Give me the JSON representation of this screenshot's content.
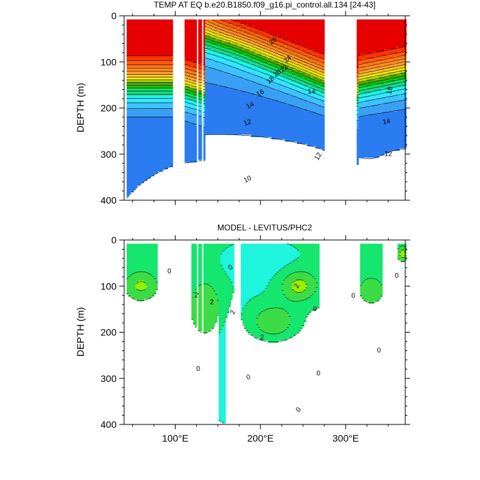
{
  "chart_data": [
    {
      "type": "heatmap",
      "title": "TEMP AT EQ b.e20.B1850.f09_g16.pi_control.all.134 [24-43]",
      "ylabel": "DEPTH (m)",
      "xlabel": "",
      "xlim": [
        40,
        370
      ],
      "ylim": [
        400,
        0
      ],
      "x_ticks": [],
      "y_ticks": [
        {
          "value": 0,
          "label": "0"
        },
        {
          "value": 100,
          "label": "100"
        },
        {
          "value": 200,
          "label": "200"
        },
        {
          "value": 300,
          "label": "300"
        },
        {
          "value": 400,
          "label": "400"
        }
      ],
      "y_minor_ticks": [
        20,
        40,
        60,
        80,
        120,
        140,
        160,
        180,
        220,
        240,
        260,
        280,
        320,
        340,
        360,
        380
      ],
      "x_minor_ticks": [
        50,
        75,
        100,
        125,
        150,
        175,
        200,
        225,
        250,
        275,
        300,
        325,
        350
      ],
      "contour_interval": 1,
      "color_levels": [
        {
          "max": 10,
          "color": "#1e5aff"
        },
        {
          "max": 11,
          "color": "#2a7cf0"
        },
        {
          "max": 12,
          "color": "#3aa0f5"
        },
        {
          "max": 13,
          "color": "#3cc2ff"
        },
        {
          "max": 14,
          "color": "#33e6ff"
        },
        {
          "max": 15,
          "color": "#1af5e6"
        },
        {
          "max": 16,
          "color": "#16d98a"
        },
        {
          "max": 17,
          "color": "#10e060"
        },
        {
          "max": 18,
          "color": "#00c800"
        },
        {
          "max": 19,
          "color": "#5aa800"
        },
        {
          "max": 20,
          "color": "#b4e000"
        },
        {
          "max": 21,
          "color": "#ffeb00"
        },
        {
          "max": 22,
          "color": "#ffc820"
        },
        {
          "max": 23,
          "color": "#ffa030"
        },
        {
          "max": 24,
          "color": "#ff8c1e"
        },
        {
          "max": 25,
          "color": "#ff7814"
        },
        {
          "max": 26,
          "color": "#ff5a0a"
        },
        {
          "max": 27,
          "color": "#ff3200"
        },
        {
          "max": 99,
          "color": "#e60000"
        }
      ],
      "land_gaps": [
        [
          97,
          112
        ],
        [
          125,
          127
        ],
        [
          132,
          133
        ],
        [
          276,
          314
        ]
      ],
      "labels": [
        {
          "text": "26",
          "x": 215,
          "z": 55,
          "angle": -35
        },
        {
          "text": "24",
          "x": 232,
          "z": 95,
          "angle": -40
        },
        {
          "text": "22",
          "x": 228,
          "z": 115,
          "angle": -40
        },
        {
          "text": "20",
          "x": 220,
          "z": 125,
          "angle": -40
        },
        {
          "text": "18",
          "x": 212,
          "z": 140,
          "angle": -40
        },
        {
          "text": "16",
          "x": 200,
          "z": 168,
          "angle": -30
        },
        {
          "text": "14",
          "x": 188,
          "z": 195,
          "angle": -25
        },
        {
          "text": "12",
          "x": 185,
          "z": 232,
          "angle": -20
        },
        {
          "text": "14",
          "x": 260,
          "z": 165,
          "angle": 0
        },
        {
          "text": "12",
          "x": 268,
          "z": 305,
          "angle": -60
        },
        {
          "text": "10",
          "x": 185,
          "z": 355,
          "angle": -25
        },
        {
          "text": "16",
          "x": 352,
          "z": 162,
          "angle": -75
        },
        {
          "text": "14",
          "x": 348,
          "z": 230,
          "angle": -10
        },
        {
          "text": "12",
          "x": 350,
          "z": 300,
          "angle": 0
        }
      ]
    },
    {
      "type": "heatmap",
      "title": "MODEL - LEVITUS/PHC2",
      "ylabel": "DEPTH (m)",
      "xlabel": "",
      "xlim": [
        40,
        370
      ],
      "ylim": [
        400,
        0
      ],
      "x_ticks": [
        {
          "value": 100,
          "label": "100°E"
        },
        {
          "value": 200,
          "label": "200°E"
        },
        {
          "value": 300,
          "label": "300°E"
        }
      ],
      "y_ticks": [
        {
          "value": 0,
          "label": "0"
        },
        {
          "value": 100,
          "label": "100"
        },
        {
          "value": 200,
          "label": "200"
        },
        {
          "value": 300,
          "label": "300"
        },
        {
          "value": 400,
          "label": "400"
        }
      ],
      "y_minor_ticks": [
        20,
        40,
        60,
        80,
        120,
        140,
        160,
        180,
        220,
        240,
        260,
        280,
        320,
        340,
        360,
        380
      ],
      "x_minor_ticks": [
        50,
        75,
        100,
        125,
        150,
        175,
        200,
        225,
        250,
        275,
        300,
        325,
        350
      ],
      "contour_interval": 1,
      "color_levels": [
        {
          "max": -1,
          "color": "#2fe6c8"
        },
        {
          "max": 0,
          "color": "#1ef5dc"
        },
        {
          "max": 1,
          "color": "#14e66e"
        },
        {
          "max": 2,
          "color": "#3cdc46"
        },
        {
          "max": 3,
          "color": "#98f000"
        },
        {
          "max": 99,
          "color": "#f0f000"
        }
      ],
      "land_gaps": [
        [
          97,
          112
        ],
        [
          125,
          127
        ],
        [
          132,
          133
        ],
        [
          276,
          314
        ]
      ],
      "labels": [
        {
          "text": "0",
          "x": 165,
          "z": 60,
          "angle": -40
        },
        {
          "text": "2",
          "x": 125,
          "z": 120,
          "angle": 0
        },
        {
          "text": "2",
          "x": 143,
          "z": 135,
          "angle": 0
        },
        {
          "text": "2",
          "x": 168,
          "z": 157,
          "angle": -70
        },
        {
          "text": "2",
          "x": 243,
          "z": 100,
          "angle": -60
        },
        {
          "text": "2",
          "x": 202,
          "z": 212,
          "angle": 0
        },
        {
          "text": "0",
          "x": 264,
          "z": 150,
          "angle": 0
        },
        {
          "text": "0",
          "x": 186,
          "z": 298,
          "angle": -20
        },
        {
          "text": "0",
          "x": 245,
          "z": 368,
          "angle": -60
        },
        {
          "text": "0",
          "x": 268,
          "z": 290,
          "angle": 0
        },
        {
          "text": "0",
          "x": 309,
          "z": 122,
          "angle": 0
        },
        {
          "text": "0",
          "x": 339,
          "z": 240,
          "angle": 0
        },
        {
          "text": "0",
          "x": 360,
          "z": 78,
          "angle": 0
        },
        {
          "text": "0",
          "x": 127,
          "z": 280,
          "angle": 0
        },
        {
          "text": "0",
          "x": 93,
          "z": 68,
          "angle": 0
        }
      ]
    }
  ]
}
